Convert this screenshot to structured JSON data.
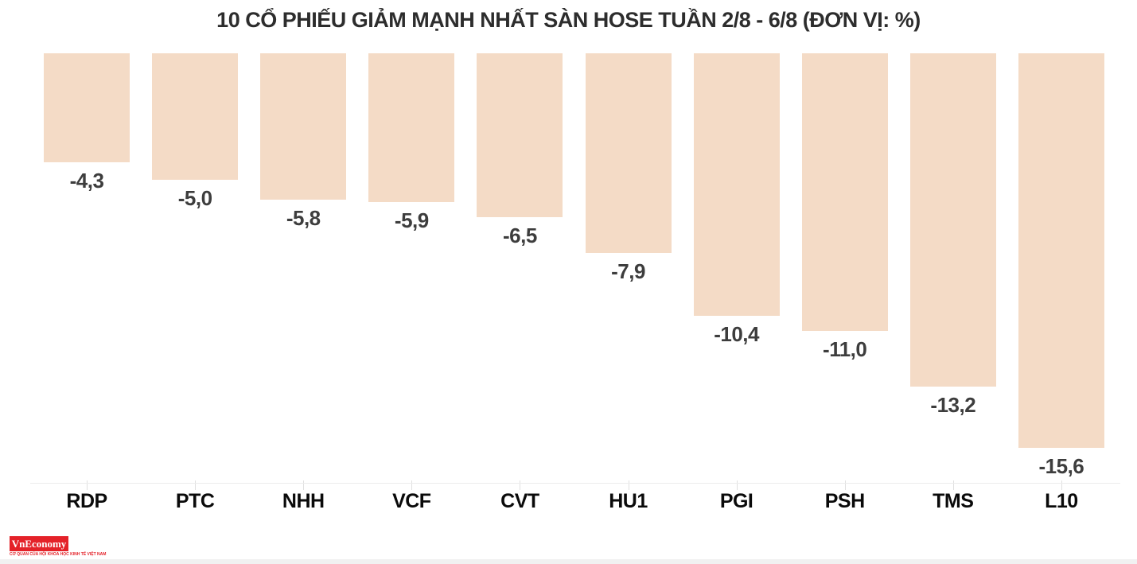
{
  "chart_data": {
    "type": "bar",
    "title": "10 CỔ PHIẾU GIẢM MẠNH NHẤT SÀN HOSE TUẦN 2/8 - 6/8 (ĐƠN VỊ: %)",
    "categories": [
      "RDP",
      "PTC",
      "NHH",
      "VCF",
      "CVT",
      "HU1",
      "PGI",
      "PSH",
      "TMS",
      "L10"
    ],
    "values": [
      -4.3,
      -5.0,
      -5.8,
      -5.9,
      -6.5,
      -7.9,
      -10.4,
      -11.0,
      -13.2,
      -15.6
    ],
    "value_labels": [
      "-4,3",
      "-5,0",
      "-5,8",
      "-5,9",
      "-6,5",
      "-7,9",
      "-10,4",
      "-11,0",
      "-13,2",
      "-15,6"
    ],
    "unit": "%",
    "xlabel": "",
    "ylabel": "",
    "ylim": [
      -17,
      0
    ],
    "orientation": "vertical",
    "bars_anchored": "top",
    "grid": false,
    "legend": false,
    "bar_color": "#f4dbc6",
    "value_label_color": "#3d3d3d",
    "category_label_color": "#0a0a0a",
    "title_color": "#2d2d2d",
    "axis_line_color": "#ececec"
  },
  "branding": {
    "logo_text": "VnEconomy",
    "logo_tagline": "CƠ QUAN CỦA HỘI KHOA HỌC KINH TẾ VIỆT NAM",
    "logo_bg_color": "#e42229",
    "logo_text_color": "#ffffff",
    "logo_tagline_color": "#e42229"
  }
}
